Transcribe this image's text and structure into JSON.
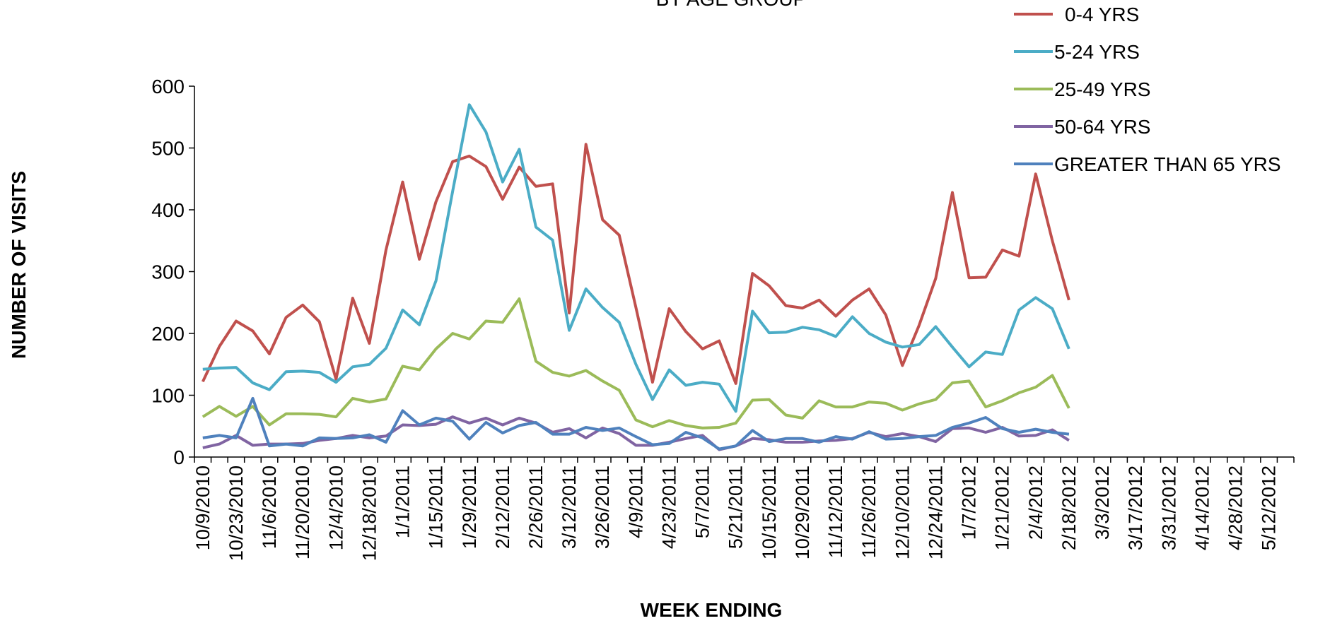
{
  "chart_data": {
    "type": "line",
    "title": "BY AGE GROUP",
    "x_label": "WEEK ENDING",
    "y_label": "NUMBER OF VISITS",
    "categories": [
      "10/9/2010",
      null,
      "10/23/2010",
      null,
      "11/6/2010",
      null,
      "11/20/2010",
      null,
      "12/4/2010",
      null,
      "12/18/2010",
      null,
      "1/1/2011",
      null,
      "1/15/2011",
      null,
      "1/29/2011",
      null,
      "2/12/2011",
      null,
      "2/26/2011",
      null,
      "3/12/2011",
      null,
      "3/26/2011",
      null,
      "4/9/2011",
      null,
      "4/23/2011",
      null,
      "5/7/2011",
      null,
      "5/21/2011",
      null,
      "10/15/2011",
      null,
      "10/29/2011",
      null,
      "11/12/2011",
      null,
      "11/26/2011",
      null,
      "12/10/2011",
      null,
      "12/24/2011",
      null,
      "1/7/2012",
      null,
      "1/21/2012",
      null,
      "2/4/2012",
      null,
      "2/18/2012",
      null,
      "3/3/2012",
      null,
      "3/17/2012",
      null,
      "3/31/2012",
      null,
      "4/14/2012",
      null,
      "4/28/2012",
      null,
      "5/12/2012",
      null
    ],
    "series": [
      {
        "name": "0-4 YRS",
        "color": "#c0504d",
        "values": [
          122,
          179,
          220,
          204,
          167,
          226,
          246,
          219,
          126,
          257,
          184,
          335,
          445,
          320,
          413,
          478,
          487,
          470,
          417,
          469,
          438,
          442,
          233,
          506,
          384,
          359,
          242,
          121,
          240,
          203,
          175,
          188,
          119,
          297,
          277,
          245,
          241,
          254,
          228,
          254,
          272,
          230,
          148,
          213,
          289,
          428,
          290,
          291,
          335,
          325,
          458,
          350,
          254,
          null,
          null,
          null,
          null,
          null,
          null,
          null,
          null,
          null,
          null,
          null,
          null,
          null
        ]
      },
      {
        "name": "5-24 YRS",
        "color": "#4bacc6",
        "values": [
          142,
          144,
          145,
          120,
          109,
          138,
          139,
          137,
          121,
          146,
          150,
          176,
          238,
          214,
          285,
          430,
          570,
          526,
          445,
          498,
          372,
          351,
          205,
          272,
          242,
          218,
          150,
          93,
          141,
          116,
          121,
          118,
          74,
          236,
          201,
          202,
          210,
          206,
          195,
          227,
          200,
          186,
          178,
          182,
          211,
          178,
          146,
          170,
          166,
          238,
          258,
          240,
          175,
          null,
          null,
          null,
          null,
          null,
          null,
          null,
          null,
          null,
          null,
          null,
          null,
          null
        ]
      },
      {
        "name": "25-49 YRS",
        "color": "#9bbb59",
        "values": [
          65,
          82,
          66,
          82,
          52,
          70,
          70,
          69,
          65,
          95,
          89,
          94,
          147,
          141,
          175,
          200,
          191,
          220,
          218,
          256,
          155,
          137,
          131,
          140,
          123,
          108,
          60,
          49,
          59,
          51,
          47,
          48,
          55,
          92,
          93,
          68,
          63,
          91,
          81,
          81,
          89,
          87,
          76,
          86,
          93,
          120,
          123,
          81,
          91,
          104,
          113,
          132,
          79,
          null,
          null,
          null,
          null,
          null,
          null,
          null,
          null,
          null,
          null,
          null,
          null,
          null
        ]
      },
      {
        "name": "50-64 YRS",
        "color": "#8064a2",
        "values": [
          15,
          21,
          35,
          19,
          21,
          21,
          22,
          27,
          30,
          35,
          31,
          34,
          52,
          51,
          53,
          65,
          55,
          63,
          52,
          63,
          55,
          40,
          46,
          31,
          47,
          38,
          19,
          19,
          24,
          30,
          35,
          12,
          18,
          30,
          28,
          24,
          24,
          26,
          27,
          30,
          40,
          33,
          38,
          33,
          25,
          46,
          47,
          40,
          48,
          34,
          35,
          44,
          27,
          null,
          null,
          null,
          null,
          null,
          null,
          null,
          null,
          null,
          null,
          null,
          null,
          null
        ]
      },
      {
        "name": "GREATER THAN 65 YRS",
        "color": "#4f81bd",
        "values": [
          31,
          35,
          31,
          95,
          18,
          21,
          18,
          31,
          30,
          31,
          36,
          24,
          75,
          52,
          63,
          58,
          29,
          56,
          39,
          51,
          56,
          37,
          37,
          48,
          43,
          47,
          33,
          20,
          22,
          40,
          31,
          13,
          18,
          43,
          25,
          30,
          30,
          24,
          33,
          29,
          41,
          29,
          30,
          33,
          35,
          48,
          55,
          64,
          46,
          40,
          45,
          40,
          37,
          null,
          null,
          null,
          null,
          null,
          null,
          null,
          null,
          null,
          null,
          null,
          null,
          null
        ]
      }
    ],
    "ylim": [
      0,
      600
    ],
    "yticks": [
      0,
      100,
      200,
      300,
      400,
      500,
      600
    ],
    "grid": false,
    "legend": "top-right"
  }
}
